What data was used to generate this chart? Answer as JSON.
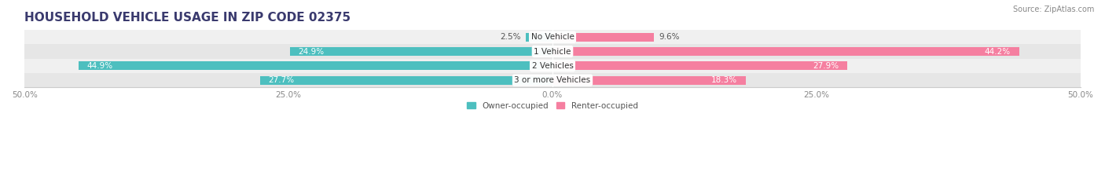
{
  "title": "HOUSEHOLD VEHICLE USAGE IN ZIP CODE 02375",
  "source": "Source: ZipAtlas.com",
  "categories": [
    "No Vehicle",
    "1 Vehicle",
    "2 Vehicles",
    "3 or more Vehicles"
  ],
  "owner_values": [
    2.5,
    24.9,
    44.9,
    27.7
  ],
  "renter_values": [
    9.6,
    44.2,
    27.9,
    18.3
  ],
  "owner_color": "#4DBFBF",
  "renter_color": "#F57FA0",
  "row_bg_colors": [
    "#F0F0F0",
    "#E6E6E6"
  ],
  "axis_max": 50.0,
  "title_color": "#3A3A6E",
  "title_fontsize": 11,
  "cat_fontsize": 7.5,
  "pct_fontsize": 7.5,
  "tick_fontsize": 7.5,
  "source_fontsize": 7,
  "legend_fontsize": 7.5,
  "bar_height": 0.6,
  "figsize": [
    14.06,
    2.33
  ],
  "dpi": 100
}
